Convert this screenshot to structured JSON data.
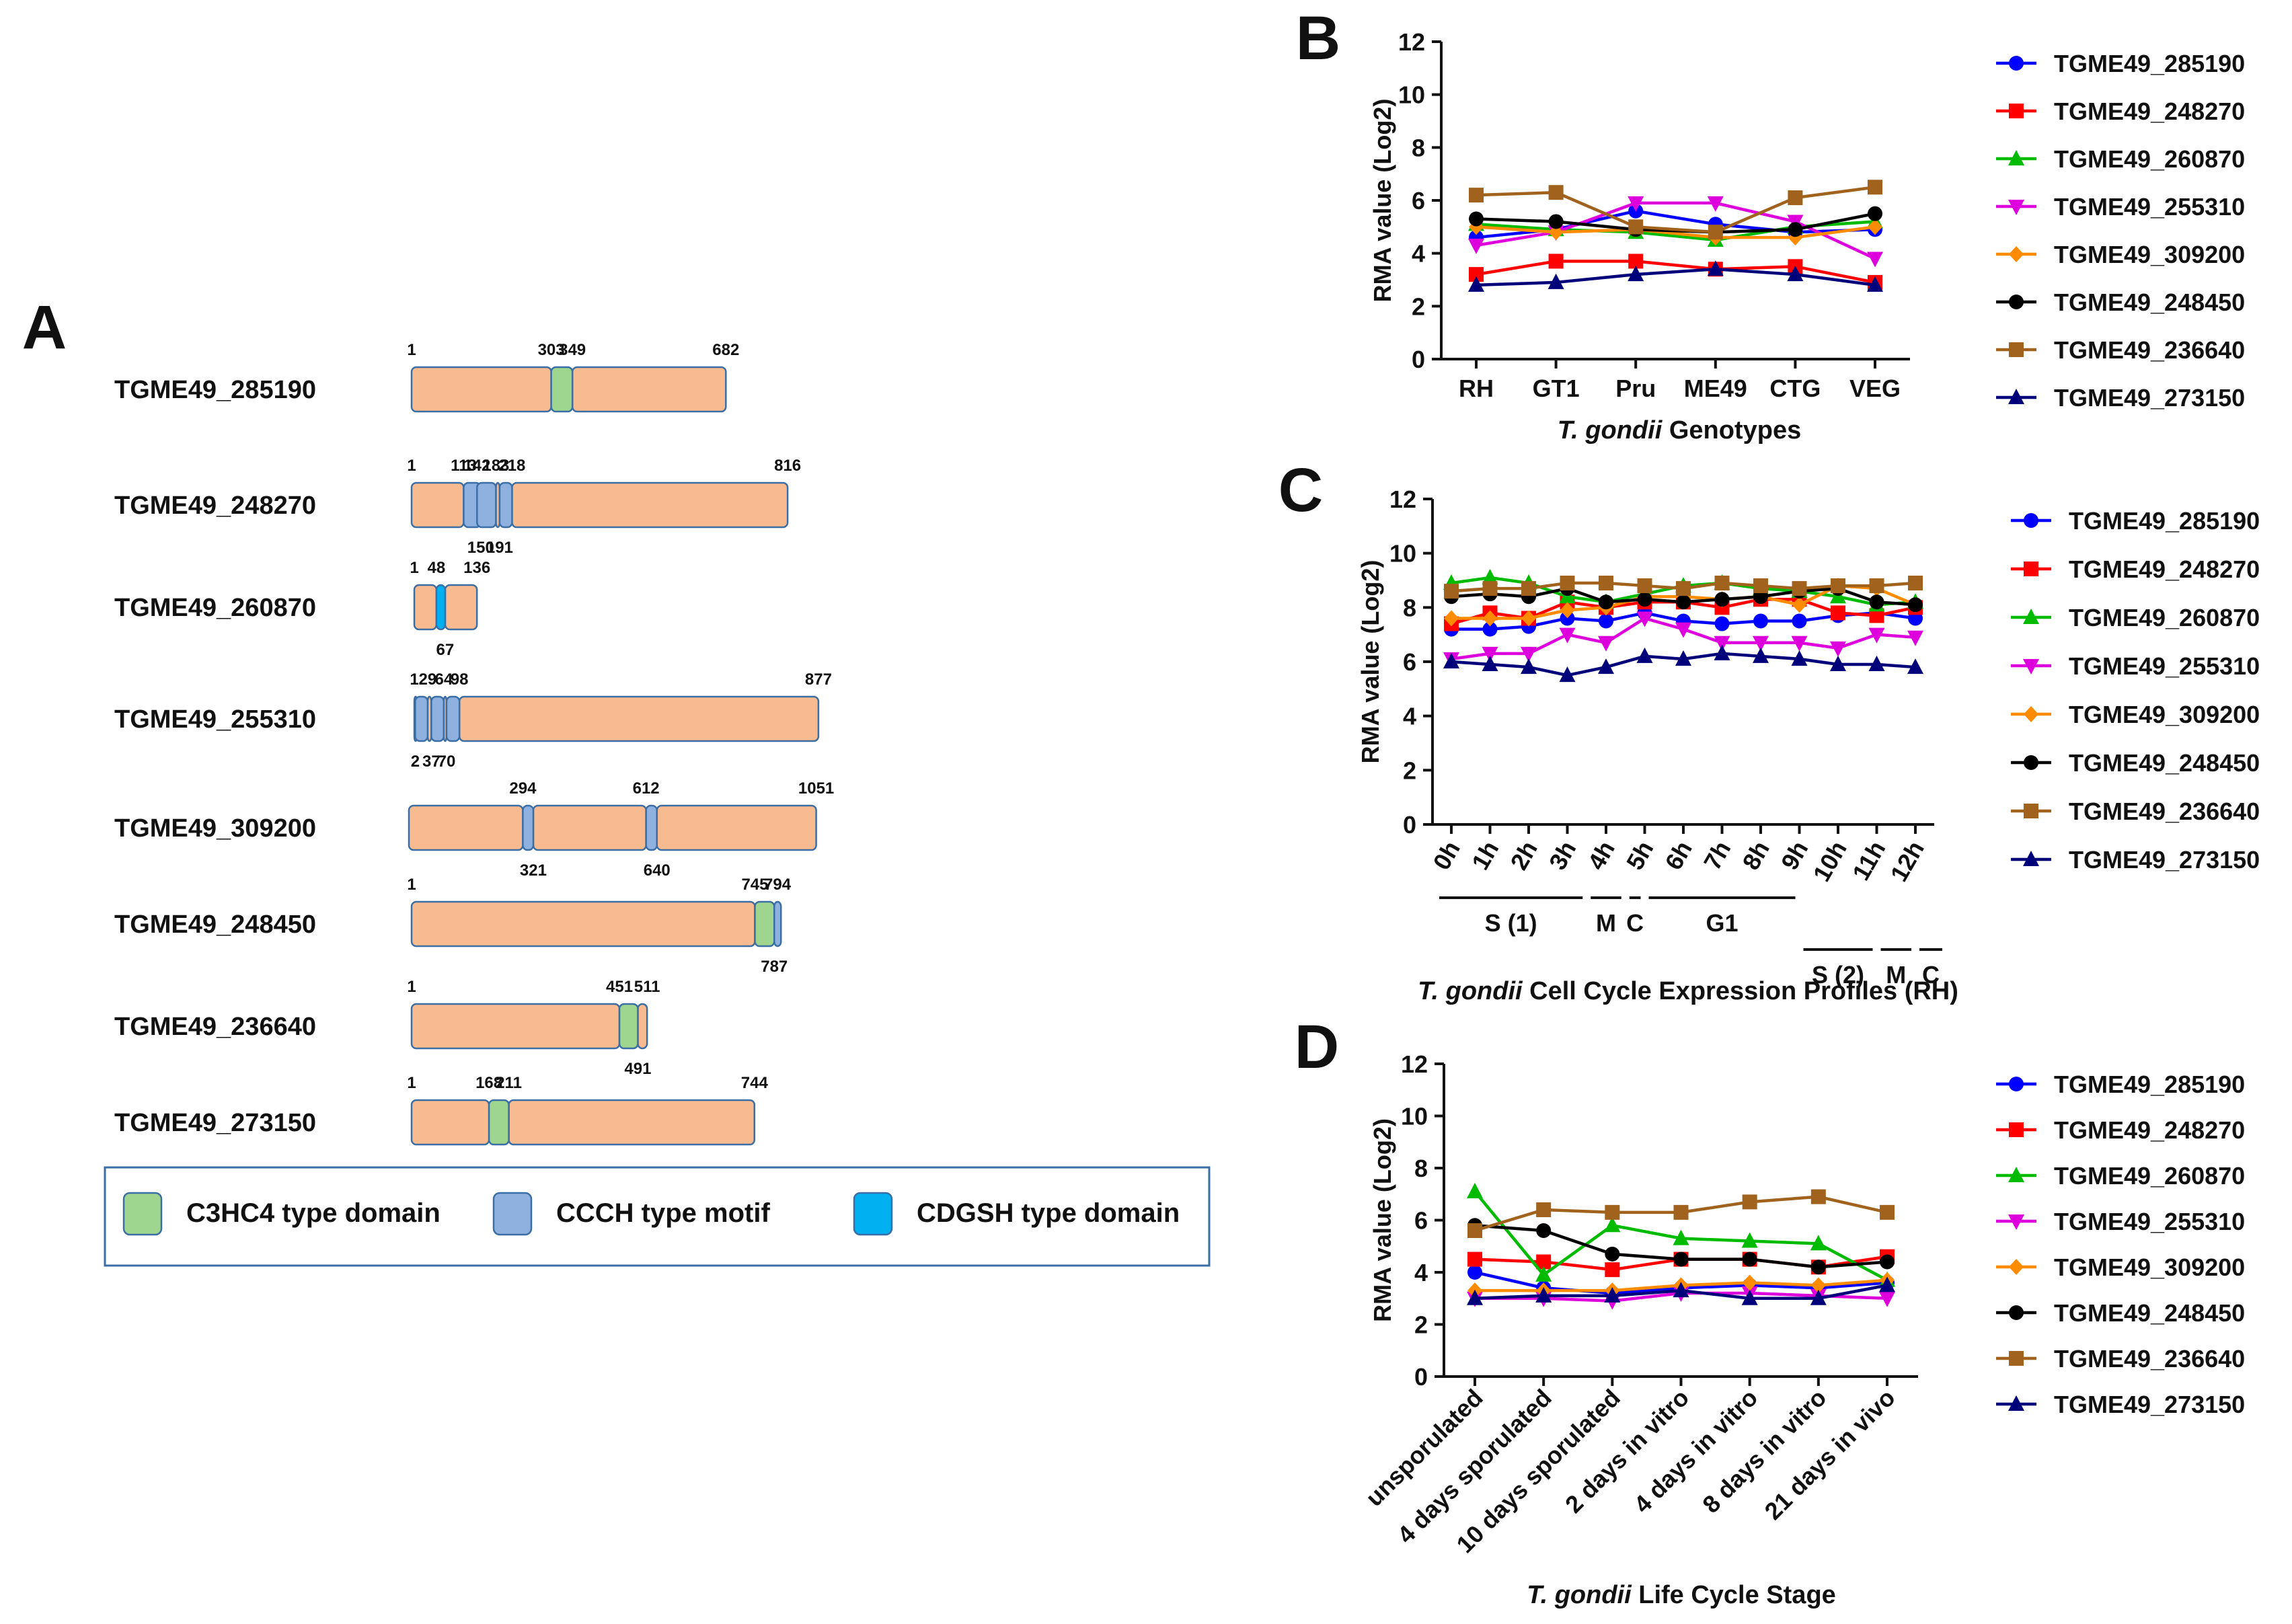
{
  "panel_a": {
    "label": "A",
    "proteins": [
      {
        "name": "TGME49_285190",
        "length": 682,
        "domains": [
          {
            "type": "C3HC4",
            "start": 303,
            "end": 349
          }
        ],
        "top_labels": [
          1,
          303,
          349,
          682
        ],
        "bottom_labels": []
      },
      {
        "name": "TGME49_248270",
        "length": 816,
        "domains": [
          {
            "type": "CCCH",
            "start": 113,
            "end": 150
          },
          {
            "type": "CCCH",
            "start": 142,
            "end": 183
          },
          {
            "type": "CCCH",
            "start": 191,
            "end": 218
          }
        ],
        "top_labels": [
          1,
          113,
          142,
          183,
          218,
          816
        ],
        "bottom_labels": [
          150,
          191
        ]
      },
      {
        "name": "TGME49_260870",
        "length": 136,
        "domains": [
          {
            "type": "CDGSH",
            "start": 48,
            "end": 67
          }
        ],
        "top_labels": [
          1,
          48,
          136
        ],
        "bottom_labels": [
          67
        ]
      },
      {
        "name": "TGME49_255310",
        "length": 877,
        "domains": [
          {
            "type": "CCCH",
            "start": 2,
            "end": 29
          },
          {
            "type": "CCCH",
            "start": 37,
            "end": 64
          },
          {
            "type": "CCCH",
            "start": 70,
            "end": 98
          }
        ],
        "top_labels": [
          1,
          29,
          64,
          98,
          877
        ],
        "bottom_labels": [
          2,
          37,
          70
        ]
      },
      {
        "name": "TGME49_309200",
        "length": 1051,
        "domains": [
          {
            "type": "CCCH",
            "start": 294,
            "end": 321
          },
          {
            "type": "CCCH",
            "start": 612,
            "end": 640
          }
        ],
        "top_labels": [
          294,
          612,
          1051
        ],
        "bottom_labels": [
          321,
          640
        ]
      },
      {
        "name": "TGME49_248450",
        "length": 794,
        "domains": [
          {
            "type": "C3HC4",
            "start": 745,
            "end": 787
          },
          {
            "type": "CCCH",
            "start": 787,
            "end": 794
          }
        ],
        "top_labels": [
          1,
          745,
          794
        ],
        "bottom_labels": [
          787
        ]
      },
      {
        "name": "TGME49_236640",
        "length": 511,
        "domains": [
          {
            "type": "C3HC4",
            "start": 451,
            "end": 491
          }
        ],
        "top_labels": [
          1,
          451,
          511
        ],
        "bottom_labels": [
          491
        ]
      },
      {
        "name": "TGME49_273150",
        "length": 744,
        "domains": [
          {
            "type": "C3HC4",
            "start": 168,
            "end": 211
          }
        ],
        "top_labels": [
          1,
          168,
          211,
          744
        ],
        "bottom_labels": []
      }
    ],
    "legend": [
      {
        "type": "C3HC4",
        "label": "C3HC4 type domain",
        "color": "#9ed58f"
      },
      {
        "type": "CCCH",
        "label": "CCCH type motif",
        "color": "#8fb1e0"
      },
      {
        "type": "CDGSH",
        "label": "CDGSH type domain",
        "color": "#00b0f0"
      }
    ],
    "bar_color": "#f8bb8f",
    "border_color": "#3b6ea5"
  },
  "series_style": [
    {
      "name": "TGME49_285190",
      "color": "#0000ff",
      "marker": "circle"
    },
    {
      "name": "TGME49_248270",
      "color": "#ff0000",
      "marker": "square"
    },
    {
      "name": "TGME49_260870",
      "color": "#00bb00",
      "marker": "triangle"
    },
    {
      "name": "TGME49_255310",
      "color": "#dd00dd",
      "marker": "triangle-down"
    },
    {
      "name": "TGME49_309200",
      "color": "#ff8c00",
      "marker": "diamond"
    },
    {
      "name": "TGME49_248450",
      "color": "#000000",
      "marker": "circle"
    },
    {
      "name": "TGME49_236640",
      "color": "#a0621c",
      "marker": "square"
    },
    {
      "name": "TGME49_273150",
      "color": "#00007a",
      "marker": "triangle"
    }
  ],
  "chart_data": [
    {
      "panel": "B",
      "type": "line",
      "categories": [
        "RH",
        "GT1",
        "Pru",
        "ME49",
        "CTG",
        "VEG"
      ],
      "ylabel": "RMA value (Log2)",
      "xlabel_italic": "T. gondii",
      "xlabel_rest": " Genotypes",
      "ylim": [
        0,
        12
      ],
      "yticks": [
        0,
        2,
        4,
        6,
        8,
        10,
        12
      ],
      "series": [
        {
          "name": "TGME49_285190",
          "values": [
            4.6,
            4.9,
            5.6,
            5.1,
            4.8,
            4.9
          ]
        },
        {
          "name": "TGME49_248270",
          "values": [
            3.2,
            3.7,
            3.7,
            3.4,
            3.5,
            2.9
          ]
        },
        {
          "name": "TGME49_260870",
          "values": [
            5.1,
            4.9,
            4.8,
            4.5,
            5.0,
            5.2
          ]
        },
        {
          "name": "TGME49_255310",
          "values": [
            4.3,
            4.8,
            5.9,
            5.9,
            5.2,
            3.8
          ]
        },
        {
          "name": "TGME49_309200",
          "values": [
            5.0,
            4.8,
            4.9,
            4.6,
            4.6,
            5.0
          ]
        },
        {
          "name": "TGME49_248450",
          "values": [
            5.3,
            5.2,
            4.9,
            4.8,
            4.9,
            5.5
          ]
        },
        {
          "name": "TGME49_236640",
          "values": [
            6.2,
            6.3,
            5.0,
            4.8,
            6.1,
            6.5
          ]
        },
        {
          "name": "TGME49_273150",
          "values": [
            2.8,
            2.9,
            3.2,
            3.4,
            3.2,
            2.8
          ]
        }
      ]
    },
    {
      "panel": "C",
      "type": "line",
      "categories": [
        "0h",
        "1h",
        "2h",
        "3h",
        "4h",
        "5h",
        "6h",
        "7h",
        "8h",
        "9h",
        "10h",
        "11h",
        "12h"
      ],
      "ylabel": "RMA value (Log2)",
      "xlabel_italic": "T. gondii",
      "xlabel_rest": " Cell Cycle Expression Profiles (RH)",
      "ylim": [
        0,
        12
      ],
      "yticks": [
        0,
        2,
        4,
        6,
        8,
        10,
        12
      ],
      "phases": [
        {
          "label": "S (1)",
          "from": 0,
          "to": 3.5
        },
        {
          "label": "M",
          "from": 3.5,
          "to": 4.5
        },
        {
          "label": "C",
          "from": 4.5,
          "to": 5
        },
        {
          "label": "G1",
          "from": 5,
          "to": 9
        },
        {
          "label": "S (2)",
          "from": 9,
          "to": 11
        },
        {
          "label": "M",
          "from": 11,
          "to": 12
        },
        {
          "label": "C",
          "from": 12,
          "to": 12.6
        }
      ],
      "series": [
        {
          "name": "TGME49_285190",
          "values": [
            7.2,
            7.2,
            7.3,
            7.6,
            7.5,
            7.8,
            7.5,
            7.4,
            7.5,
            7.5,
            7.7,
            7.8,
            7.6
          ]
        },
        {
          "name": "TGME49_248270",
          "values": [
            7.4,
            7.8,
            7.6,
            8.2,
            8.0,
            8.2,
            8.2,
            8.0,
            8.3,
            8.3,
            7.8,
            7.7,
            8.0
          ]
        },
        {
          "name": "TGME49_260870",
          "values": [
            8.9,
            9.1,
            8.9,
            8.4,
            8.2,
            8.5,
            8.8,
            8.9,
            8.7,
            8.6,
            8.4,
            8.1,
            8.2
          ]
        },
        {
          "name": "TGME49_255310",
          "values": [
            6.1,
            6.3,
            6.3,
            7.0,
            6.7,
            7.6,
            7.2,
            6.7,
            6.7,
            6.7,
            6.5,
            7.0,
            6.9
          ]
        },
        {
          "name": "TGME49_309200",
          "values": [
            7.6,
            7.6,
            7.6,
            7.9,
            8.0,
            8.4,
            8.4,
            8.3,
            8.4,
            8.1,
            8.8,
            8.7,
            8.1
          ]
        },
        {
          "name": "TGME49_248450",
          "values": [
            8.4,
            8.5,
            8.4,
            8.7,
            8.2,
            8.3,
            8.2,
            8.3,
            8.4,
            8.6,
            8.7,
            8.2,
            8.1
          ]
        },
        {
          "name": "TGME49_236640",
          "values": [
            8.6,
            8.7,
            8.7,
            8.9,
            8.9,
            8.8,
            8.7,
            8.9,
            8.8,
            8.7,
            8.8,
            8.8,
            8.9
          ]
        },
        {
          "name": "TGME49_273150",
          "values": [
            6.0,
            5.9,
            5.8,
            5.5,
            5.8,
            6.2,
            6.1,
            6.3,
            6.2,
            6.1,
            5.9,
            5.9,
            5.8
          ]
        }
      ]
    },
    {
      "panel": "D",
      "type": "line",
      "categories": [
        "unsporulated",
        "4 days sporulated",
        "10 days sporulated",
        "2 days in vitro",
        "4 days in vitro",
        "8 days in vitro",
        "21 days in vivo"
      ],
      "ylabel": "RMA value (Log2)",
      "xlabel_italic": "T. gondii",
      "xlabel_rest": " Life Cycle Stage",
      "ylim": [
        0,
        12
      ],
      "yticks": [
        0,
        2,
        4,
        6,
        8,
        10,
        12
      ],
      "series": [
        {
          "name": "TGME49_285190",
          "values": [
            4.0,
            3.4,
            3.2,
            3.4,
            3.5,
            3.4,
            3.6
          ]
        },
        {
          "name": "TGME49_248270",
          "values": [
            4.5,
            4.4,
            4.1,
            4.5,
            4.5,
            4.2,
            4.6
          ]
        },
        {
          "name": "TGME49_260870",
          "values": [
            7.1,
            3.9,
            5.8,
            5.3,
            5.2,
            5.1,
            3.7
          ]
        },
        {
          "name": "TGME49_255310",
          "values": [
            3.0,
            3.0,
            2.9,
            3.2,
            3.2,
            3.1,
            3.0
          ]
        },
        {
          "name": "TGME49_309200",
          "values": [
            3.3,
            3.3,
            3.3,
            3.5,
            3.6,
            3.5,
            3.7
          ]
        },
        {
          "name": "TGME49_248450",
          "values": [
            5.8,
            5.6,
            4.7,
            4.5,
            4.5,
            4.2,
            4.4
          ]
        },
        {
          "name": "TGME49_236640",
          "values": [
            5.6,
            6.4,
            6.3,
            6.3,
            6.7,
            6.9,
            6.3
          ]
        },
        {
          "name": "TGME49_273150",
          "values": [
            3.0,
            3.1,
            3.1,
            3.3,
            3.0,
            3.0,
            3.5
          ]
        }
      ]
    }
  ]
}
